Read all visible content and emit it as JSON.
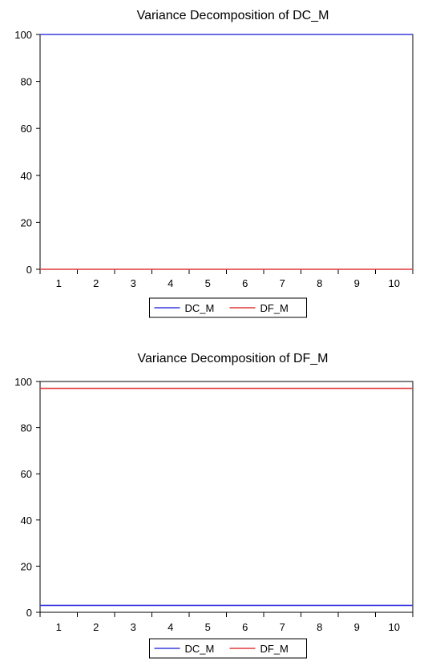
{
  "chart_data": [
    {
      "type": "line",
      "title": "Variance Decomposition of DC_M",
      "xlabel": "",
      "ylabel": "",
      "categories": [
        "1",
        "2",
        "3",
        "4",
        "5",
        "6",
        "7",
        "8",
        "9",
        "10"
      ],
      "ylim": [
        0,
        100
      ],
      "yticks": [
        0,
        20,
        40,
        60,
        80,
        100
      ],
      "series": [
        {
          "name": "DC_M",
          "color": "#3a3ae0",
          "values": [
            100,
            100,
            100,
            100,
            100,
            100,
            100,
            100,
            100,
            100
          ]
        },
        {
          "name": "DF_M",
          "color": "#e03a3a",
          "values": [
            0,
            0,
            0,
            0,
            0,
            0,
            0,
            0,
            0,
            0
          ]
        }
      ],
      "grid": false,
      "legend_position": "bottom-center"
    },
    {
      "type": "line",
      "title": "Variance Decomposition of DF_M",
      "xlabel": "",
      "ylabel": "",
      "categories": [
        "1",
        "2",
        "3",
        "4",
        "5",
        "6",
        "7",
        "8",
        "9",
        "10"
      ],
      "ylim": [
        0,
        100
      ],
      "yticks": [
        0,
        20,
        40,
        60,
        80,
        100
      ],
      "series": [
        {
          "name": "DC_M",
          "color": "#3a3ae0",
          "values": [
            3,
            3,
            3,
            3,
            3,
            3,
            3,
            3,
            3,
            3
          ]
        },
        {
          "name": "DF_M",
          "color": "#e03a3a",
          "values": [
            97,
            97,
            97,
            97,
            97,
            97,
            97,
            97,
            97,
            97
          ]
        }
      ],
      "grid": false,
      "legend_position": "bottom-center"
    }
  ]
}
